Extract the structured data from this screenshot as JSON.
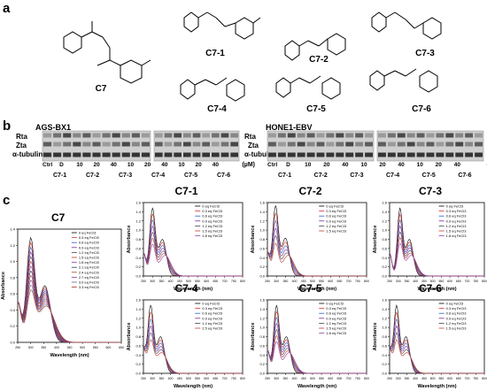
{
  "panels": {
    "a": {
      "letter": "a",
      "compounds": [
        "C7",
        "C7-1",
        "C7-2",
        "C7-3",
        "C7-4",
        "C7-5",
        "C7-6"
      ]
    },
    "b": {
      "letter": "b",
      "cells": [
        {
          "name": "AGS-BX1",
          "rows": [
            "Rta",
            "Zta",
            "α-tubulin"
          ],
          "lanes": [
            "Ctrl",
            "D",
            "10",
            "20",
            "40",
            "10",
            "20",
            "40",
            "10",
            "20",
            "40"
          ],
          "lanes2": [
            "Ctrl",
            "D",
            "10",
            "20",
            "40",
            "10",
            "20",
            "40",
            "10",
            "20",
            "40"
          ],
          "groups": [
            "C7-1",
            "C7-2",
            "C7-3",
            "C7-4",
            "C7-5",
            "C7-6"
          ],
          "unit": "(µM)"
        },
        {
          "name": "HONE1-EBV",
          "rows": [
            "Rta",
            "Zta",
            "α-tubulin"
          ],
          "lanes": [
            "Ctrl",
            "D",
            "10",
            "20",
            "40",
            "10",
            "20",
            "40",
            "10",
            "20",
            "40"
          ],
          "groups": [
            "C7-1",
            "C7-2",
            "C7-3",
            "C7-4",
            "C7-5",
            "C7-6"
          ],
          "unit": "(µM)"
        }
      ]
    },
    "c": {
      "letter": "c"
    }
  },
  "chart_data": [
    {
      "type": "line",
      "title": "C7",
      "xlabel": "Wavelength (nm)",
      "ylabel": "Absorbance",
      "xlim": [
        250,
        650
      ],
      "ylim": [
        0,
        1.4
      ],
      "xticks": [
        250,
        300,
        350,
        400,
        450,
        500,
        550,
        600,
        650
      ],
      "yticks": [
        0,
        0.2,
        0.4,
        0.6,
        0.8,
        1.0,
        1.2,
        1.4
      ],
      "legend": [
        "0 eq FeCl3",
        "0.3 eq FeCl3",
        "0.6 eq FeCl3",
        "0.9 eq FeCl3",
        "1.2 eq FeCl3",
        "1.5 eq FeCl3",
        "1.8 eq FeCl3",
        "2.1 eq FeCl3",
        "2.4 eq FeCl3",
        "2.7 eq FeCl3",
        "3.0 eq FeCl3",
        "3.3 eq FeCl3"
      ],
      "colors": [
        "#000000",
        "#d9342b",
        "#1f5fd1",
        "#7a2a8c",
        "#444444",
        "#c0392b",
        "#8e44ad",
        "#2c3e50",
        "#b03a2e",
        "#7d3c98",
        "#5d6d7e",
        "#a93226"
      ],
      "peak": 1.27,
      "peak_x": 300,
      "iso_x": 330
    },
    {
      "type": "line",
      "title": "C7-1",
      "xlabel": "Wavelength (nm)",
      "ylabel": "Absorbance",
      "xlim": [
        250,
        800
      ],
      "ylim": [
        0,
        1.6
      ],
      "xticks": [
        250,
        300,
        350,
        400,
        450,
        500,
        550,
        600,
        650,
        700,
        750,
        800
      ],
      "yticks": [
        0,
        0.2,
        0.4,
        0.6,
        0.8,
        1.0,
        1.2,
        1.4,
        1.6
      ],
      "legend": [
        "0 eq FeCl3",
        "0.3 eq FeCl3",
        "0.6 eq FeCl3",
        "0.9 eq FeCl3",
        "1.2 eq FeCl3",
        "1.5 eq FeCl3",
        "1.8 eq FeCl3"
      ],
      "colors": [
        "#000000",
        "#d9342b",
        "#1f5fd1",
        "#7a2a8c",
        "#444444",
        "#c0392b",
        "#8e44ad"
      ],
      "peak": 1.45,
      "peak_x": 300,
      "iso_x": 340
    },
    {
      "type": "line",
      "title": "C7-2",
      "xlabel": "Wavelength (nm)",
      "ylabel": "Absorbance",
      "xlim": [
        250,
        800
      ],
      "ylim": [
        0,
        1.6
      ],
      "xticks": [
        250,
        300,
        350,
        400,
        450,
        500,
        550,
        600,
        650,
        700,
        750,
        800
      ],
      "yticks": [
        0,
        0.2,
        0.4,
        0.6,
        0.8,
        1.0,
        1.2,
        1.4,
        1.6
      ],
      "legend": [
        "0 eq FeCl3",
        "0.3 eq FeCl3",
        "0.6 eq FeCl3",
        "0.9 eq FeCl3",
        "1.2 eq FeCl3",
        "1.5 eq FeCl3"
      ],
      "colors": [
        "#000000",
        "#d9342b",
        "#1f5fd1",
        "#7a2a8c",
        "#444444",
        "#c0392b"
      ],
      "peak": 1.5,
      "peak_x": 295,
      "iso_x": 335
    },
    {
      "type": "line",
      "title": "C7-3",
      "xlabel": "Wavelength (nm)",
      "ylabel": "Absorbance",
      "xlim": [
        250,
        800
      ],
      "ylim": [
        0,
        1.6
      ],
      "xticks": [
        250,
        300,
        350,
        400,
        450,
        500,
        550,
        600,
        650,
        700,
        750,
        800
      ],
      "yticks": [
        0,
        0.2,
        0.4,
        0.6,
        0.8,
        1.0,
        1.2,
        1.4,
        1.6
      ],
      "legend": [
        "0 eq FeCl3",
        "0.3 eq FeCl3",
        "0.6 eq FeCl3",
        "0.9 eq FeCl3",
        "1.2 eq FeCl3",
        "1.5 eq FeCl3",
        "1.8 eq FeCl3"
      ],
      "colors": [
        "#000000",
        "#d9342b",
        "#1f5fd1",
        "#7a2a8c",
        "#444444",
        "#c0392b",
        "#8e44ad"
      ],
      "peak": 1.45,
      "peak_x": 310,
      "iso_x": 345
    },
    {
      "type": "line",
      "title": "C7-4",
      "xlabel": "Wavelength (nm)",
      "ylabel": "Absorbance",
      "xlim": [
        250,
        800
      ],
      "ylim": [
        0,
        1.6
      ],
      "xticks": [
        250,
        300,
        350,
        400,
        450,
        500,
        550,
        600,
        650,
        700,
        750,
        800
      ],
      "yticks": [
        0,
        0.2,
        0.4,
        0.6,
        0.8,
        1.0,
        1.2,
        1.4,
        1.6
      ],
      "legend": [
        "0 eq FeCl3",
        "0.3 eq FeCl3",
        "0.6 eq FeCl3",
        "0.9 eq FeCl3",
        "1.2 eq FeCl3",
        "1.5 eq FeCl3"
      ],
      "colors": [
        "#000000",
        "#d9342b",
        "#1f5fd1",
        "#7a2a8c",
        "#444444",
        "#c0392b"
      ],
      "peak": 1.45,
      "peak_x": 290,
      "iso_x": 320
    },
    {
      "type": "line",
      "title": "C7-5",
      "xlabel": "Wavelength (nm)",
      "ylabel": "Absorbance",
      "xlim": [
        250,
        800
      ],
      "ylim": [
        0,
        1.6
      ],
      "xticks": [
        250,
        300,
        350,
        400,
        450,
        500,
        550,
        600,
        650,
        700,
        750,
        800
      ],
      "yticks": [
        0,
        0.2,
        0.4,
        0.6,
        0.8,
        1.0,
        1.2,
        1.4,
        1.6
      ],
      "legend": [
        "0 eq FeCl3",
        "0.3 eq FeCl3",
        "0.6 eq FeCl3",
        "0.9 eq FeCl3",
        "1.2 eq FeCl3",
        "1.5 eq FeCl3",
        "1.8 eq FeCl3"
      ],
      "colors": [
        "#000000",
        "#d9342b",
        "#1f5fd1",
        "#7a2a8c",
        "#444444",
        "#c0392b",
        "#8e44ad"
      ],
      "peak": 1.45,
      "peak_x": 300,
      "iso_x": 340
    },
    {
      "type": "line",
      "title": "C7-6",
      "xlabel": "Wavelength (nm)",
      "ylabel": "Absorbance",
      "xlim": [
        250,
        800
      ],
      "ylim": [
        0,
        1.6
      ],
      "xticks": [
        250,
        300,
        350,
        400,
        450,
        500,
        550,
        600,
        650,
        700,
        750,
        800
      ],
      "yticks": [
        0,
        0.2,
        0.4,
        0.6,
        0.8,
        1.0,
        1.2,
        1.4,
        1.6
      ],
      "legend": [
        "0 eq FeCl3",
        "0.3 eq FeCl3",
        "0.6 eq FeCl3",
        "0.9 eq FeCl3",
        "1.2 eq FeCl3",
        "1.5 eq FeCl3"
      ],
      "colors": [
        "#000000",
        "#d9342b",
        "#1f5fd1",
        "#7a2a8c",
        "#444444",
        "#c0392b"
      ],
      "peak": 1.45,
      "peak_x": 290,
      "iso_x": 320
    }
  ]
}
